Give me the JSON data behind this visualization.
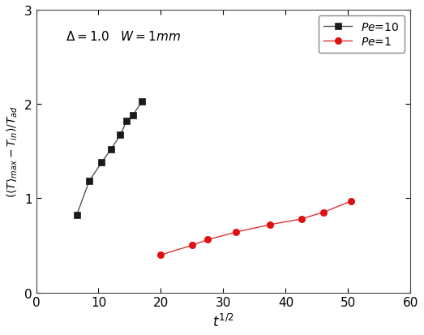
{
  "black_x": [
    6.5,
    8.5,
    10.5,
    12.0,
    13.5,
    14.5,
    15.5,
    17.0
  ],
  "black_y": [
    0.82,
    1.18,
    1.38,
    1.52,
    1.67,
    1.82,
    1.88,
    2.03
  ],
  "red_x": [
    20.0,
    25.0,
    27.5,
    32.0,
    37.5,
    42.5,
    46.0,
    50.5
  ],
  "red_y": [
    0.4,
    0.5,
    0.56,
    0.64,
    0.72,
    0.78,
    0.85,
    0.97
  ],
  "black_label": "$Pe$=10",
  "red_label": "$Pe$=1",
  "xlabel": "$t^{1/2}$",
  "ylabel": "$(\\langle T\\rangle_{max}-T_{in})/T_{ad}$",
  "xlim": [
    0,
    60
  ],
  "ylim": [
    0,
    3
  ],
  "xticks": [
    0,
    10,
    20,
    30,
    40,
    50,
    60
  ],
  "yticks": [
    0,
    1,
    2,
    3
  ],
  "black_color": "#1a1a1a",
  "red_color": "#dd1111",
  "line_color_black": "#555555",
  "line_color_red": "#dd3333",
  "bg_color": "#ffffff",
  "spine_color": "#444444",
  "tick_fontsize": 11,
  "label_fontsize": 12,
  "annot_fontsize": 11,
  "legend_fontsize": 10
}
